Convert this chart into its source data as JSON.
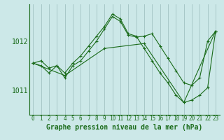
{
  "xlabel": "Graphe pression niveau de la mer (hPa)",
  "bg_color": "#cce8e8",
  "grid_color": "#99bbbb",
  "line_color": "#1a6b1a",
  "xlim": [
    -0.5,
    23.5
  ],
  "ylim": [
    1010.5,
    1012.75
  ],
  "yticks": [
    1011,
    1012
  ],
  "xticks": [
    0,
    1,
    2,
    3,
    4,
    5,
    6,
    7,
    8,
    9,
    10,
    11,
    12,
    13,
    14,
    15,
    16,
    17,
    18,
    19,
    20,
    21,
    22,
    23
  ],
  "series1_x": [
    0,
    1,
    2,
    3,
    4,
    5,
    6,
    7,
    8,
    9,
    10,
    11,
    12,
    13,
    14,
    15,
    16,
    17,
    18,
    19,
    20,
    21,
    22,
    23
  ],
  "series1_y": [
    1011.55,
    1011.6,
    1011.45,
    1011.5,
    1011.35,
    1011.55,
    1011.7,
    1011.9,
    1012.1,
    1012.3,
    1012.55,
    1012.45,
    1012.15,
    1012.1,
    1011.85,
    1011.6,
    1011.35,
    1011.15,
    1010.9,
    1010.75,
    1010.8,
    1010.9,
    1011.05,
    1012.2
  ],
  "series2_x": [
    0,
    1,
    2,
    3,
    4,
    5,
    6,
    7,
    8,
    9,
    10,
    11,
    12,
    13,
    14,
    15,
    16,
    17,
    18,
    19,
    20,
    21,
    22,
    23
  ],
  "series2_y": [
    1011.55,
    1011.5,
    1011.35,
    1011.5,
    1011.25,
    1011.5,
    1011.6,
    1011.8,
    1012.0,
    1012.25,
    1012.5,
    1012.4,
    1012.12,
    1012.08,
    1012.1,
    1012.15,
    1011.9,
    1011.65,
    1011.4,
    1011.15,
    1011.1,
    1011.25,
    1012.0,
    1012.2
  ],
  "series3_x": [
    0,
    4,
    9,
    14,
    19,
    23
  ],
  "series3_y": [
    1011.55,
    1011.3,
    1011.85,
    1011.95,
    1010.75,
    1012.2
  ],
  "xlabel_fontsize": 7,
  "ytick_fontsize": 7,
  "xtick_fontsize": 5.5
}
